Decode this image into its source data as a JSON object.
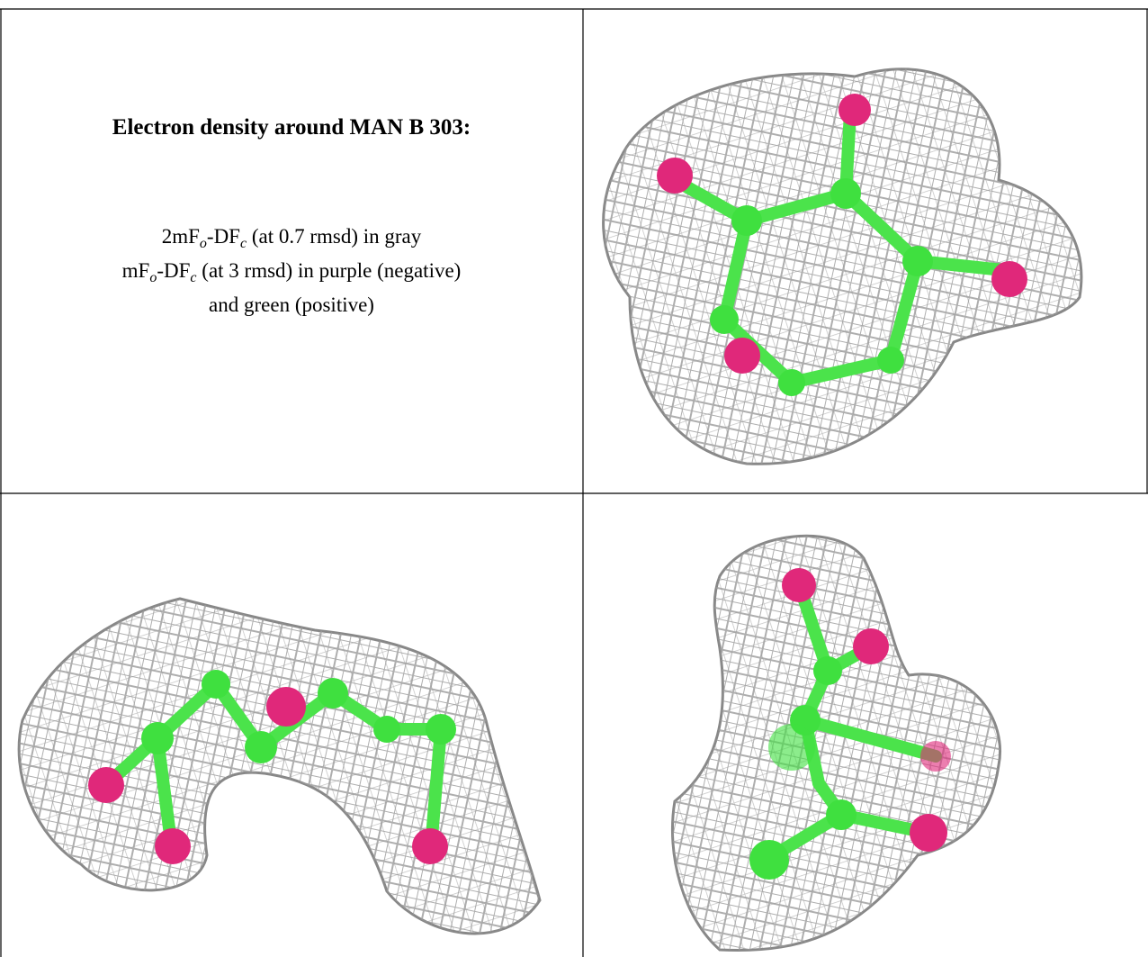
{
  "title": "Electron density around MAN B 303:",
  "description": [
    [
      {
        "text": "2mF",
        "sub": false
      },
      {
        "text": "o",
        "sub": true
      },
      {
        "text": "-DF",
        "sub": false
      },
      {
        "text": "c",
        "sub": true
      },
      {
        "text": " (at 0.7 rmsd) in gray",
        "sub": false
      }
    ],
    [
      {
        "text": "mF",
        "sub": false
      },
      {
        "text": "o",
        "sub": true
      },
      {
        "text": "-DF",
        "sub": false
      },
      {
        "text": "c",
        "sub": true
      },
      {
        "text": " (at 3 rmsd) in purple (negative)",
        "sub": false
      }
    ],
    [
      {
        "text": "and green (positive)",
        "sub": false
      }
    ]
  ]
}
